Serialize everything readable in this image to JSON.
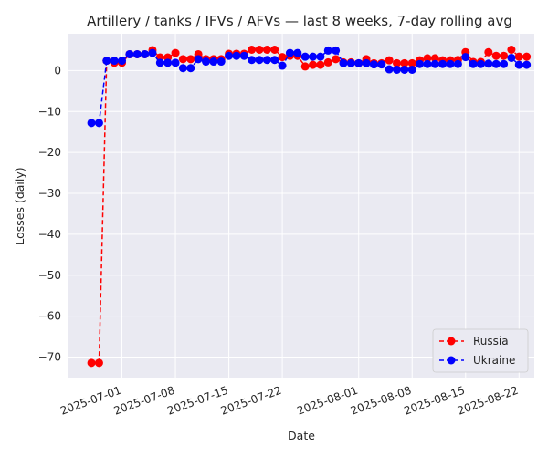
{
  "chart_data": {
    "type": "line",
    "title": "Artillery / tanks / IFVs / AFVs — last 8 weeks, 7-day rolling avg",
    "xlabel": "Date",
    "ylabel": "Losses (daily)",
    "x_range": [
      "2025-06-24",
      "2025-08-24"
    ],
    "ylim": [
      -75,
      9
    ],
    "grid": true,
    "legend_position": "lower-right",
    "x_tick_labels": [
      "2025-07-01",
      "2025-07-08",
      "2025-07-15",
      "2025-07-22",
      "2025-08-01",
      "2025-08-08",
      "2025-08-15",
      "2025-08-22"
    ],
    "y_tick_labels": [
      "0",
      "−10",
      "−20",
      "−30",
      "−40",
      "−50",
      "−60",
      "−70"
    ],
    "y_ticks": [
      0,
      -10,
      -20,
      -30,
      -40,
      -50,
      -60,
      -70
    ],
    "x": [
      "2025-06-27",
      "2025-06-28",
      "2025-06-29",
      "2025-06-30",
      "2025-07-01",
      "2025-07-02",
      "2025-07-03",
      "2025-07-04",
      "2025-07-05",
      "2025-07-06",
      "2025-07-07",
      "2025-07-08",
      "2025-07-09",
      "2025-07-10",
      "2025-07-11",
      "2025-07-12",
      "2025-07-13",
      "2025-07-14",
      "2025-07-15",
      "2025-07-16",
      "2025-07-17",
      "2025-07-18",
      "2025-07-19",
      "2025-07-20",
      "2025-07-21",
      "2025-07-22",
      "2025-07-23",
      "2025-07-24",
      "2025-07-25",
      "2025-07-26",
      "2025-07-27",
      "2025-07-28",
      "2025-07-29",
      "2025-07-30",
      "2025-07-31",
      "2025-08-01",
      "2025-08-02",
      "2025-08-03",
      "2025-08-04",
      "2025-08-05",
      "2025-08-06",
      "2025-08-07",
      "2025-08-08",
      "2025-08-09",
      "2025-08-10",
      "2025-08-11",
      "2025-08-12",
      "2025-08-13",
      "2025-08-14",
      "2025-08-15",
      "2025-08-16",
      "2025-08-17",
      "2025-08-18",
      "2025-08-19",
      "2025-08-20",
      "2025-08-21",
      "2025-08-22",
      "2025-08-23"
    ],
    "series": [
      {
        "name": "Russia",
        "color": "#ff0000",
        "values": [
          -71.4,
          -71.4,
          2.4,
          1.9,
          1.9,
          4.0,
          4.0,
          4.0,
          5.0,
          3.2,
          3.2,
          4.3,
          2.8,
          2.8,
          4.0,
          2.8,
          2.8,
          2.8,
          4.1,
          4.1,
          4.1,
          5.1,
          5.1,
          5.1,
          5.1,
          3.3,
          3.6,
          3.6,
          1.0,
          1.4,
          1.4,
          2.0,
          2.8,
          2.0,
          2.0,
          1.8,
          2.8,
          1.8,
          1.8,
          2.5,
          1.8,
          1.8,
          1.8,
          2.5,
          3.0,
          3.0,
          2.5,
          2.5,
          2.6,
          4.5,
          2.1,
          2.1,
          4.5,
          3.6,
          3.6,
          5.1,
          3.4,
          3.4
        ]
      },
      {
        "name": "Ukraine",
        "color": "#0000ff",
        "values": [
          -12.8,
          -12.8,
          2.4,
          2.4,
          2.4,
          4.0,
          4.0,
          4.0,
          4.3,
          1.9,
          1.9,
          1.9,
          0.6,
          0.6,
          2.8,
          2.2,
          2.2,
          2.2,
          3.6,
          3.6,
          3.6,
          2.6,
          2.6,
          2.6,
          2.6,
          1.2,
          4.3,
          4.3,
          3.4,
          3.4,
          3.4,
          4.9,
          4.9,
          1.8,
          1.8,
          1.8,
          1.8,
          1.5,
          1.5,
          0.3,
          0.2,
          0.2,
          0.2,
          1.6,
          1.6,
          1.6,
          1.6,
          1.6,
          1.6,
          3.3,
          1.6,
          1.6,
          1.7,
          1.6,
          1.6,
          3.1,
          1.4,
          1.4
        ]
      }
    ]
  }
}
